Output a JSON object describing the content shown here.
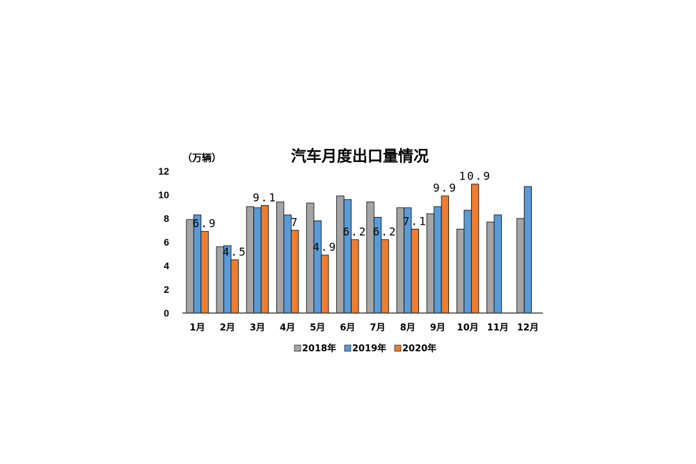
{
  "chart_data": {
    "type": "bar",
    "title": "汽车月度出口量情况",
    "unit_label": "（万辆）",
    "ylim": [
      0,
      12
    ],
    "yticks": [
      "0",
      "2",
      "4",
      "6",
      "8",
      "10",
      "12"
    ],
    "grid": false,
    "legend_position": "bottom",
    "categories": [
      "1月",
      "2月",
      "3月",
      "4月",
      "5月",
      "6月",
      "7月",
      "8月",
      "9月",
      "10月",
      "11月",
      "12月"
    ],
    "series": [
      {
        "name": "2018年",
        "color": "#a5a5a5",
        "values": [
          7.9,
          5.6,
          9.0,
          9.4,
          9.3,
          9.9,
          9.4,
          8.9,
          8.4,
          7.1,
          7.7,
          8.0
        ]
      },
      {
        "name": "2019年",
        "color": "#5b9bd5",
        "values": [
          8.3,
          5.7,
          8.9,
          8.3,
          7.8,
          9.6,
          8.1,
          8.9,
          9.0,
          8.7,
          8.3,
          10.7
        ]
      },
      {
        "name": "2020年",
        "color": "#ed7d31",
        "values": [
          6.9,
          4.5,
          9.1,
          7.0,
          4.9,
          6.2,
          6.2,
          7.1,
          9.9,
          10.9,
          null,
          null
        ],
        "data_labels": [
          "6.9",
          "4.5",
          "9.1",
          "7",
          "4.9",
          "6.2",
          "6.2",
          "7.1",
          "9.9",
          "10.9",
          "",
          ""
        ]
      }
    ]
  }
}
